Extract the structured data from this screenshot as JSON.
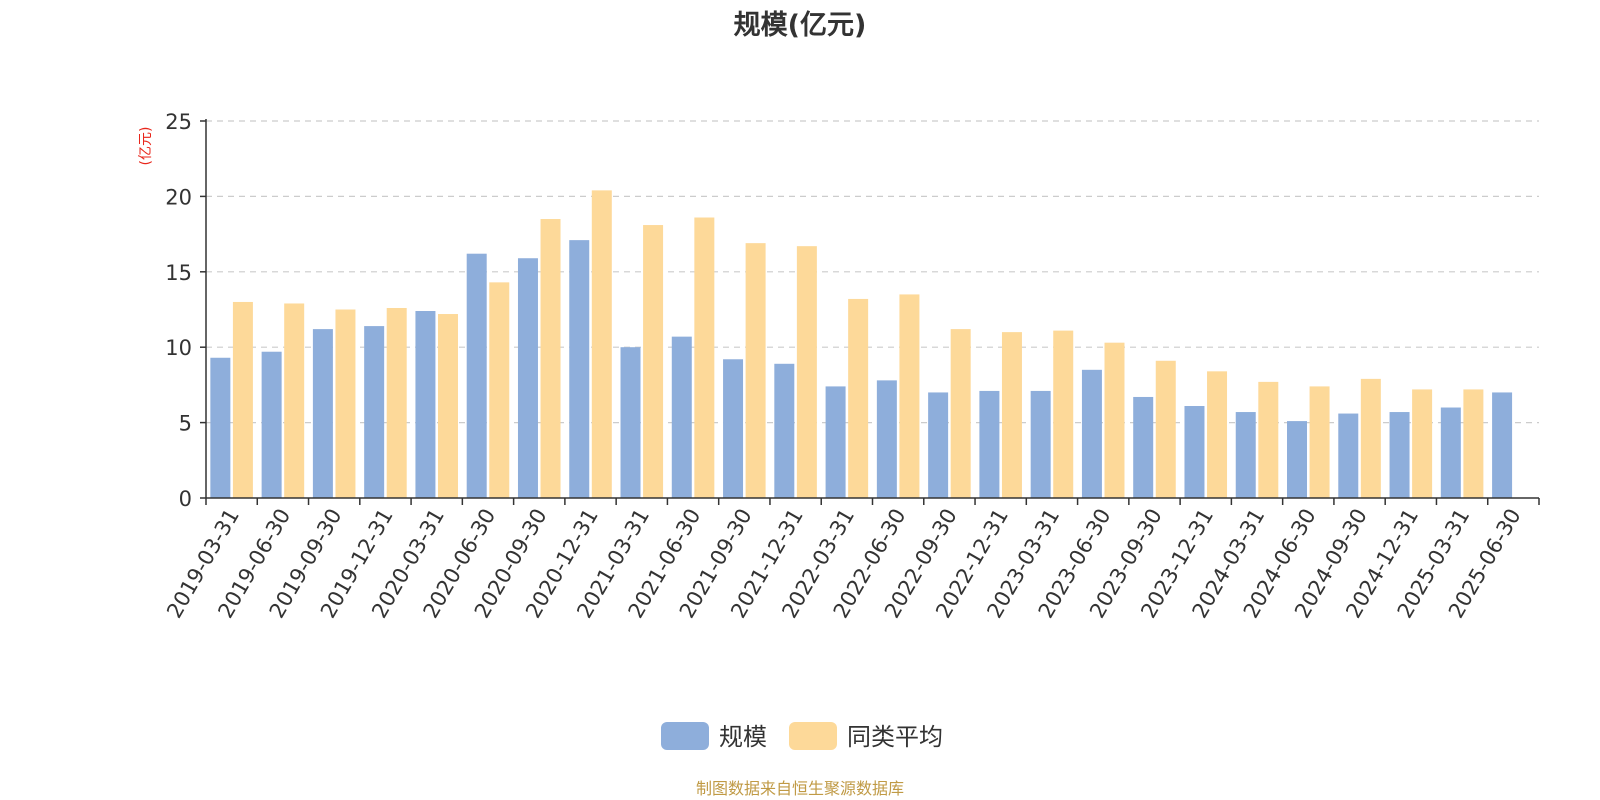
{
  "chart_data": {
    "type": "bar",
    "title": "规模(亿元)",
    "ylabel": "(亿元)",
    "ylim": [
      0,
      25
    ],
    "yticks": [
      0,
      5,
      10,
      15,
      20,
      25
    ],
    "grid": true,
    "legend_position": "bottom-center",
    "source": "制图数据来自恒生聚源数据库",
    "categories": [
      "2019-03-31",
      "2019-06-30",
      "2019-09-30",
      "2019-12-31",
      "2020-03-31",
      "2020-06-30",
      "2020-09-30",
      "2020-12-31",
      "2021-03-31",
      "2021-06-30",
      "2021-09-30",
      "2021-12-31",
      "2022-03-31",
      "2022-06-30",
      "2022-09-30",
      "2022-12-31",
      "2023-03-31",
      "2023-06-30",
      "2023-09-30",
      "2023-12-31",
      "2024-03-31",
      "2024-06-30",
      "2024-09-30",
      "2024-12-31",
      "2025-03-31",
      "2025-06-30"
    ],
    "series": [
      {
        "name": "规模",
        "color": "#8eaedb",
        "values": [
          9.3,
          9.7,
          11.2,
          11.4,
          12.4,
          16.2,
          15.9,
          17.1,
          10.0,
          10.7,
          9.2,
          8.9,
          7.4,
          7.8,
          7.0,
          7.1,
          7.1,
          8.5,
          6.7,
          6.1,
          5.7,
          5.1,
          5.6,
          5.7,
          6.0,
          7.0
        ]
      },
      {
        "name": "同类平均",
        "color": "#fdd999",
        "values": [
          13.0,
          12.9,
          12.5,
          12.6,
          12.2,
          14.3,
          18.5,
          20.4,
          18.1,
          18.6,
          16.9,
          16.7,
          13.2,
          13.5,
          11.2,
          11.0,
          11.1,
          10.3,
          9.1,
          8.4,
          7.7,
          7.4,
          7.9,
          7.2,
          7.2,
          null
        ]
      }
    ]
  }
}
